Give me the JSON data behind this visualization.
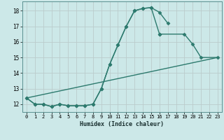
{
  "xlabel": "Humidex (Indice chaleur)",
  "bg_color": "#cce8e8",
  "grid_color": "#bbcccc",
  "line_color": "#2d7a6e",
  "xlim": [
    -0.5,
    23.5
  ],
  "ylim": [
    11.5,
    18.6
  ],
  "yticks": [
    12,
    13,
    14,
    15,
    16,
    17,
    18
  ],
  "xticks": [
    0,
    1,
    2,
    3,
    4,
    5,
    6,
    7,
    8,
    9,
    10,
    11,
    12,
    13,
    14,
    15,
    16,
    17,
    18,
    19,
    20,
    21,
    22,
    23
  ],
  "line1_x": [
    0,
    1,
    2,
    3,
    4,
    5,
    6,
    7,
    8,
    9,
    10,
    11,
    12,
    13,
    14,
    15,
    16,
    17
  ],
  "line1_y": [
    12.4,
    12.0,
    12.0,
    11.85,
    12.0,
    11.9,
    11.9,
    11.9,
    12.0,
    13.0,
    14.55,
    15.8,
    17.0,
    18.0,
    18.15,
    18.2,
    17.9,
    17.2
  ],
  "line2a_x": [
    0,
    1,
    2,
    3,
    4,
    5,
    6,
    7,
    8,
    9,
    10,
    11,
    12,
    13,
    14,
    15,
    16
  ],
  "line2a_y": [
    12.4,
    12.0,
    12.0,
    11.85,
    12.0,
    11.9,
    11.9,
    11.9,
    12.0,
    13.0,
    14.55,
    15.8,
    17.0,
    18.0,
    18.15,
    18.2,
    16.5
  ],
  "line2b_x": [
    16,
    19,
    20,
    21,
    23
  ],
  "line2b_y": [
    16.5,
    16.5,
    15.85,
    15.0,
    15.0
  ],
  "line3_x": [
    0,
    23
  ],
  "line3_y": [
    12.4,
    15.0
  ],
  "marker_size": 2.5,
  "line_width": 1.0
}
